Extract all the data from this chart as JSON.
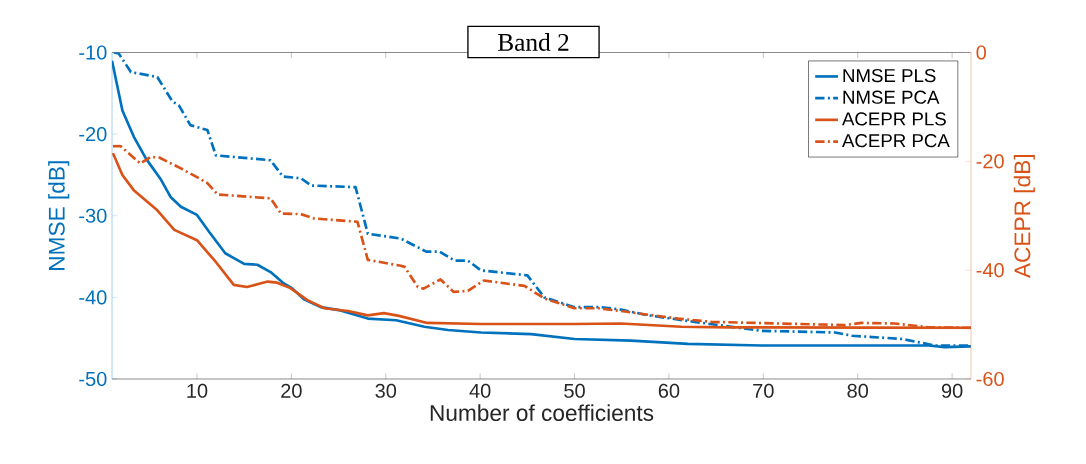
{
  "chart_data": {
    "type": "line",
    "title": "Band 2",
    "xlabel": "Number of coefficients",
    "ylabel": "NMSE [dB]",
    "y2label": "ACEPR [dB]",
    "xlim": [
      1,
      92
    ],
    "xticks": [
      10,
      20,
      30,
      40,
      50,
      60,
      70,
      80,
      90
    ],
    "ylim": [
      -50,
      -10
    ],
    "yticks": [
      -50,
      -40,
      -30,
      -20,
      -10
    ],
    "y2lim": [
      -60,
      0
    ],
    "y2ticks": [
      -60,
      -40,
      -20,
      0
    ],
    "legend": "top right",
    "grid": false,
    "marker": "none",
    "series": [
      {
        "name": "NMSE PLS",
        "color": "#0072bd",
        "line_style": "solid",
        "x": [
          1,
          2.1,
          3.3,
          4.6,
          6.2,
          7.2,
          8.3,
          10,
          11.3,
          13,
          15,
          16.4,
          17.8,
          19.2,
          20.1,
          21.3,
          23.1,
          25.2,
          28.1,
          31.1,
          34.1,
          36.6,
          40.1,
          45.4,
          50,
          56,
          62,
          69.8,
          87.5,
          89.2,
          92
        ],
        "values": [
          -11,
          -17.1,
          -20.3,
          -23,
          -25.6,
          -27.7,
          -28.9,
          -29.9,
          -32,
          -34.6,
          -35.9,
          -36,
          -36.9,
          -38.3,
          -38.9,
          -40.2,
          -41.2,
          -41.6,
          -42.6,
          -42.8,
          -43.6,
          -44,
          -44.3,
          -44.5,
          -45.1,
          -45.3,
          -45.7,
          -45.9,
          -45.9,
          -46.1,
          -46
        ]
      },
      {
        "name": "NMSE PCA",
        "color": "#0072bd",
        "line_style": "dashed",
        "x": [
          1.2,
          1.7,
          3,
          5.8,
          7.4,
          8.1,
          9.3,
          11.1,
          12,
          17.8,
          19.1,
          21,
          22.1,
          26.8,
          28.1,
          31.6,
          34.3,
          35.7,
          37.3,
          38.7,
          40.1,
          45,
          46.8,
          50,
          52.8,
          54.9,
          57.8,
          62.7,
          69.8,
          77.6,
          79.4,
          84.7,
          88.2,
          92
        ],
        "values": [
          -10,
          -10.1,
          -12.4,
          -13,
          -16,
          -16.5,
          -18.9,
          -19.5,
          -22.6,
          -23.2,
          -25.2,
          -25.4,
          -26.3,
          -26.5,
          -32.2,
          -32.8,
          -34.4,
          -34.4,
          -35.5,
          -35.5,
          -36.7,
          -37.3,
          -40,
          -41.2,
          -41.2,
          -41.5,
          -42.2,
          -43,
          -44.1,
          -44.3,
          -44.7,
          -45.1,
          -45.9,
          -45.9
        ]
      },
      {
        "name": "ACEPR PLS",
        "color": "#d95319",
        "line_style": "solid",
        "axis": "y2",
        "x": [
          1.1,
          2.1,
          3.3,
          5.8,
          7.6,
          10,
          12,
          13.9,
          15.3,
          17.5,
          18.5,
          19.9,
          21.7,
          23.5,
          26,
          28.1,
          29.8,
          31.4,
          34.4,
          40.1,
          50,
          54.9,
          61.3,
          66.3,
          92
        ],
        "values": [
          -18.5,
          -22.5,
          -25.3,
          -29,
          -32.6,
          -34.5,
          -38.5,
          -42.7,
          -43.1,
          -42.1,
          -42.3,
          -43.3,
          -45.5,
          -47,
          -47.5,
          -48.3,
          -47.9,
          -48.4,
          -49.7,
          -49.9,
          -49.9,
          -49.8,
          -50.4,
          -50.5,
          -50.6
        ]
      },
      {
        "name": "ACEPR PCA",
        "color": "#d95319",
        "line_style": "dashed",
        "axis": "y2",
        "x": [
          1.1,
          1.9,
          4,
          5.1,
          6,
          8.3,
          10.4,
          11.1,
          12.2,
          17.8,
          18.9,
          21,
          22.4,
          27,
          28.1,
          31.6,
          32,
          33.4,
          34,
          35.8,
          37.2,
          38.7,
          40.4,
          44.7,
          46.8,
          50,
          52.5,
          54.9,
          57.8,
          61,
          64.5,
          78.6,
          80.4,
          83.9,
          87.5,
          92
        ],
        "values": [
          -17.2,
          -17.2,
          -20.4,
          -19.2,
          -19.3,
          -21.3,
          -23.3,
          -24,
          -26.1,
          -26.8,
          -29.6,
          -29.7,
          -30.5,
          -31.1,
          -38.1,
          -39.2,
          -39.4,
          -43.1,
          -43.4,
          -41.7,
          -44,
          -43.8,
          -41.9,
          -42.9,
          -45.2,
          -47,
          -47,
          -47.5,
          -48.2,
          -48.9,
          -49.5,
          -50.1,
          -49.7,
          -49.8,
          -50.5,
          -50.6
        ]
      }
    ]
  }
}
